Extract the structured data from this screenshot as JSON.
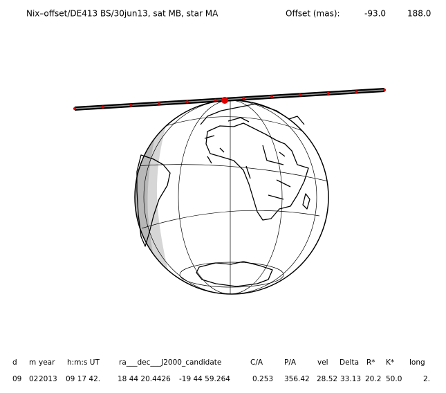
{
  "header": {
    "title": "Nix–offset/DE413 BS/30jun13, sat MB, star MA",
    "offset_label": "Offset (mas):",
    "offset_values": [
      "-93.0",
      "188.0"
    ]
  },
  "table": {
    "columns": [
      "d",
      "m",
      "year",
      "h:m:s UT",
      "ra___dec___J2000_candidate",
      "C/A",
      "P/A",
      "vel",
      "Delta",
      "R*",
      "K*",
      "long"
    ],
    "rows": [
      [
        "09",
        "02",
        "2013",
        "09 17 42.",
        "18 44 20.4426",
        "-19 44 59.264",
        "0.253",
        "356.42",
        "28.52",
        "33.13",
        "20.2",
        "50.0",
        "2."
      ]
    ]
  }
}
